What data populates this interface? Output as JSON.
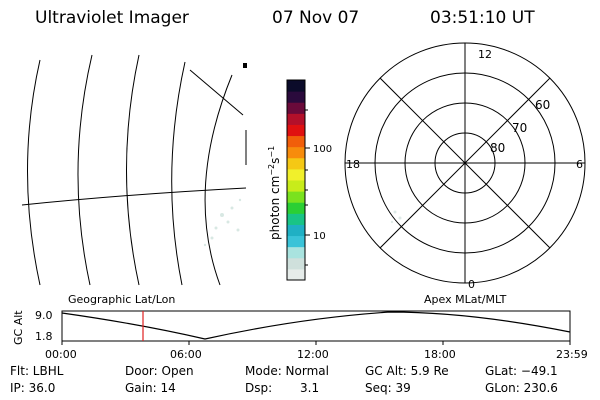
{
  "header": {
    "title": "Ultraviolet Imager",
    "date": "07 Nov 07",
    "time": "03:51:10 UT"
  },
  "colorbar": {
    "label_main": "photon cm",
    "label_exp1": "−2",
    "label_mid": "s",
    "label_exp2": "−1",
    "ticks": [
      "100",
      "10"
    ],
    "colors": [
      "#e6ecea",
      "#cfe0dc",
      "#a9e3df",
      "#39c3d8",
      "#1fb0c4",
      "#19c486",
      "#2bcf34",
      "#7ae21e",
      "#c8ec1a",
      "#f1f02b",
      "#f5c815",
      "#f78c0c",
      "#f15e0a",
      "#e01010",
      "#b3102a",
      "#6a0a3a",
      "#2a0a3c",
      "#0b0b2a"
    ]
  },
  "geo": {
    "label": "Geographic Lat/Lon"
  },
  "polar": {
    "label": "Apex MLat/MLT",
    "mlt_top": "12",
    "mlt_left": "18",
    "mlt_right": "6",
    "mlt_bottom": "0",
    "lat_60": "60",
    "lat_70": "70",
    "lat_80": "80"
  },
  "gc_plot": {
    "ylabel": "GC Alt",
    "yticks": [
      "9.0",
      "1.8"
    ],
    "xticks": [
      "00:00",
      "06:00",
      "12:00",
      "18:00",
      "23:59"
    ],
    "cursor_color": "#e02020"
  },
  "info": {
    "flt": "Flt: LBHL",
    "ip": "IP: 36.0",
    "door": "Door: Open",
    "gain": "Gain: 14",
    "mode": "Mode: Normal",
    "dsp_label": "Dsp:",
    "dsp_value": "3.1",
    "gc_alt": "GC Alt: 5.9 Re",
    "seq": "Seq: 39",
    "glat": "GLat: −49.1",
    "glon": "GLon: 230.6"
  }
}
